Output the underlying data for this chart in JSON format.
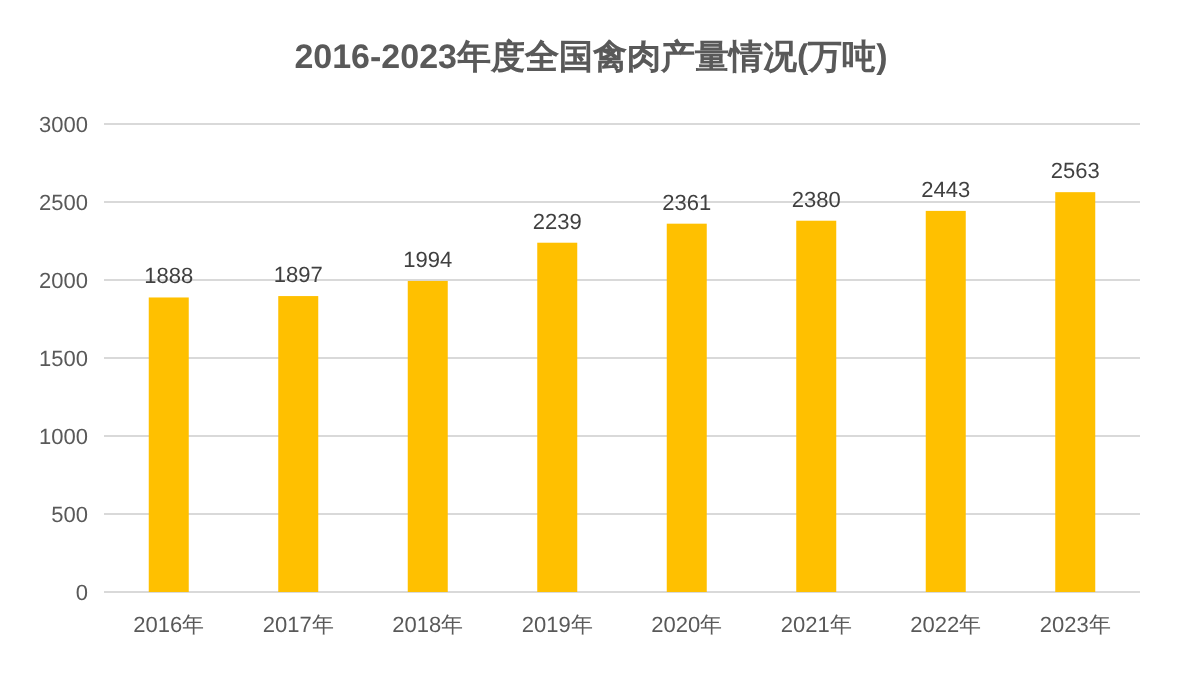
{
  "chart_data": {
    "type": "bar",
    "title": "2016-2023年度全国禽肉产量情况(万吨)",
    "categories": [
      "2016年",
      "2017年",
      "2018年",
      "2019年",
      "2020年",
      "2021年",
      "2022年",
      "2023年"
    ],
    "values": [
      1888,
      1897,
      1994,
      2239,
      2361,
      2380,
      2443,
      2563
    ],
    "color": "#ffc000",
    "ylim": [
      0,
      3000
    ],
    "yticks": [
      0,
      500,
      1000,
      1500,
      2000,
      2500,
      3000
    ],
    "grid": "y",
    "data_labels": true
  }
}
